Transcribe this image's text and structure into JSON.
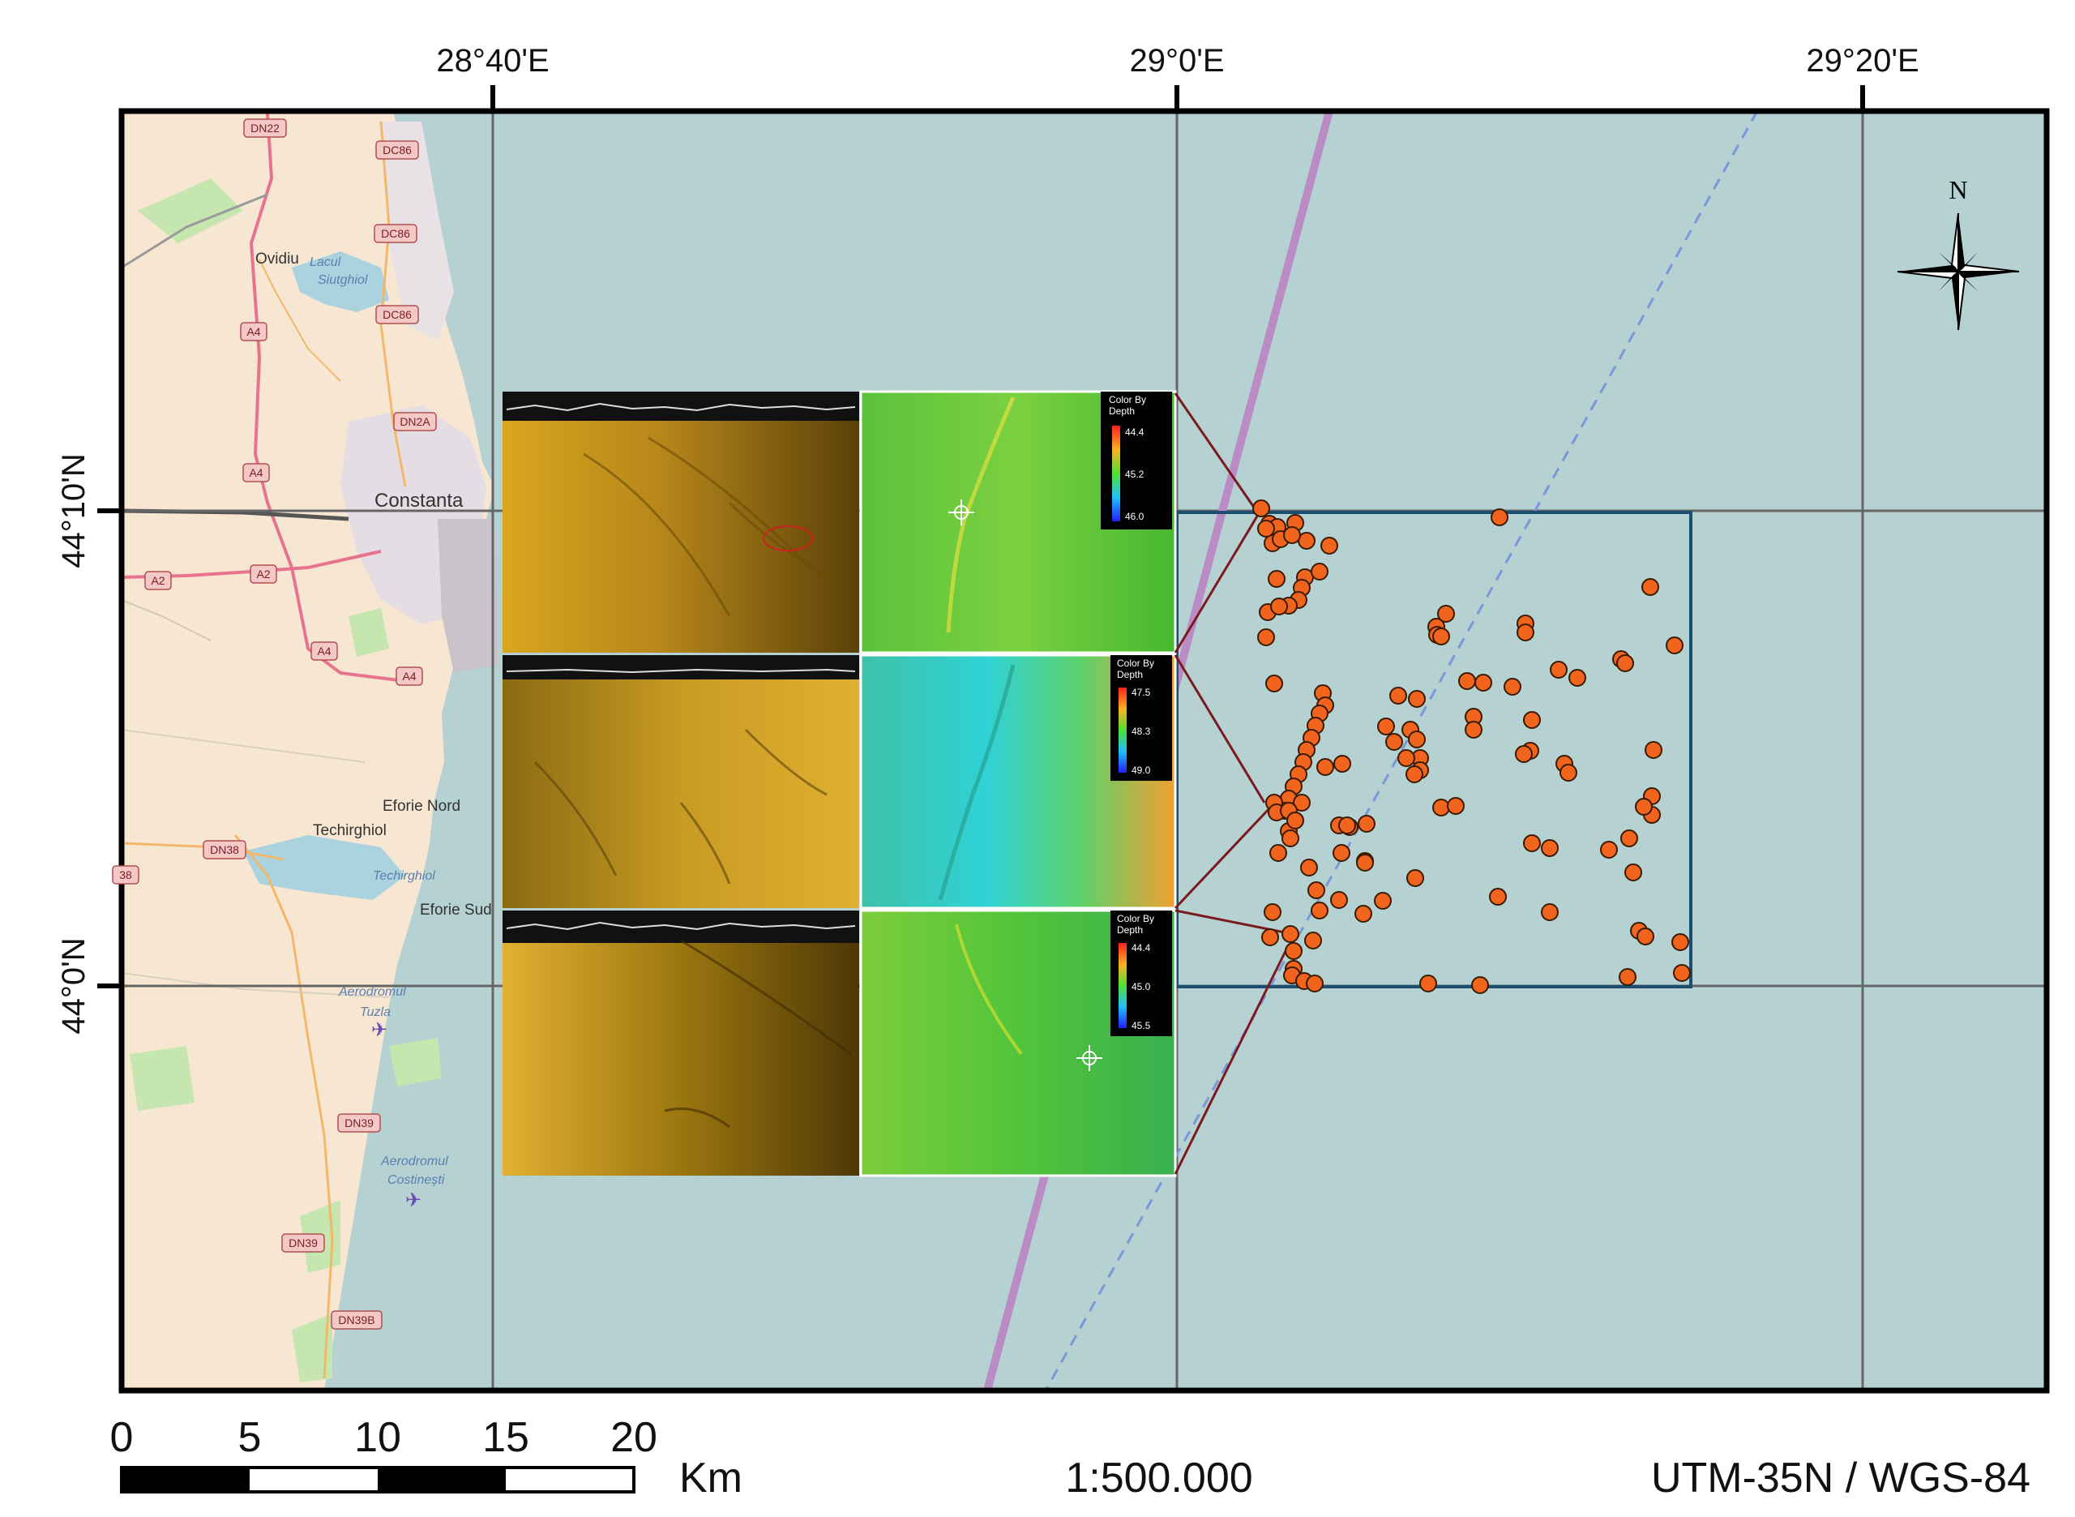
{
  "map": {
    "lon_labels": [
      "28°40'E",
      "29°0'E",
      "29°20'E"
    ],
    "lat_labels": [
      "44°10'N",
      "44°0'N"
    ],
    "north_label": "N",
    "scale_numbers": [
      "0",
      "5",
      "10",
      "15",
      "20"
    ],
    "scale_unit": "Km",
    "scale_ratio": "1:500.000",
    "projection": "UTM-35N / WGS-84",
    "places": [
      "Ovidiu",
      "Constanta",
      "Eforie Nord",
      "Techirghiol",
      "Eforie Sud",
      "Aerodromul",
      "Tuzla",
      "Aerodromul",
      "Costinești"
    ],
    "water_names": [
      "Lacul",
      "Siutghiol",
      "Techirghiol"
    ],
    "roads": [
      "DN22",
      "DC86",
      "DC86",
      "DC86",
      "A4",
      "DN2A",
      "A4",
      "A2",
      "A2",
      "A4",
      "A4",
      "DN38",
      "38",
      "DN39",
      "DN39",
      "DN39B"
    ],
    "legends": [
      {
        "title": "Color By",
        "title2": "Depth",
        "values": [
          "44.4",
          "45.2",
          "46.0"
        ]
      },
      {
        "title": "Color By",
        "title2": "Depth",
        "values": [
          "47.5",
          "48.3",
          "49.0"
        ]
      },
      {
        "title": "Color By",
        "title2": "Depth",
        "values": [
          "44.4",
          "45.0",
          "45.5"
        ]
      }
    ],
    "colors": {
      "sea": "#b5d1d2",
      "land": "#f7e7d2",
      "frame": "#000000",
      "point": "#f0641e",
      "study_box": "#1b4f72",
      "leader": "#7a1a20",
      "transect": "#b98cc6"
    }
  }
}
